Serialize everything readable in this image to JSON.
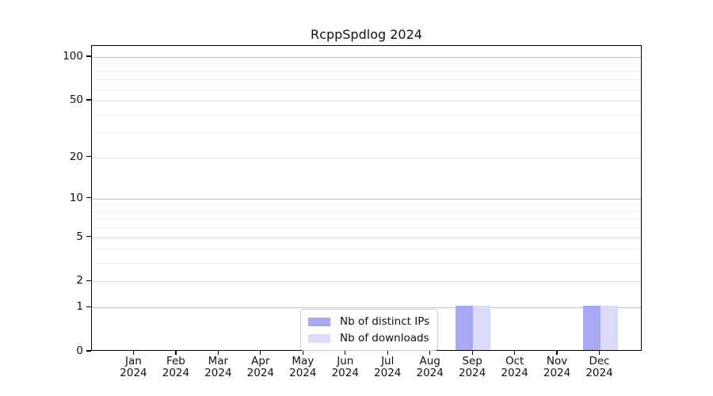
{
  "chart_data": {
    "type": "bar",
    "title": "RcppSpdlog 2024",
    "categories": [
      "Jan",
      "Feb",
      "Mar",
      "Apr",
      "May",
      "Jun",
      "Jul",
      "Aug",
      "Sep",
      "Oct",
      "Nov",
      "Dec"
    ],
    "category_year": "2024",
    "series": [
      {
        "name": "Nb of distinct IPs",
        "color": "#a8a8f5",
        "values": [
          0,
          0,
          0,
          0,
          0,
          0,
          0,
          0,
          1,
          0,
          0,
          1
        ]
      },
      {
        "name": "Nb of downloads",
        "color": "#dbdbf8",
        "values": [
          0,
          0,
          0,
          0,
          0,
          0,
          0,
          0,
          1,
          0,
          0,
          1
        ]
      }
    ],
    "yscale": "log1p",
    "ylim": [
      0,
      119
    ],
    "y_major_ticks": [
      0,
      1,
      2,
      5,
      10,
      20,
      50,
      100
    ],
    "y_decade_gridlines": [
      1,
      10,
      100
    ],
    "y_mid_gridlines": [
      2,
      5,
      20,
      50
    ],
    "y_minor_gridlines": [
      3,
      4,
      6,
      7,
      8,
      9,
      30,
      40,
      60,
      70,
      80,
      90
    ],
    "grid": "horizontal",
    "legend_position": "inside-bottom-center"
  },
  "colors": {
    "axis": "#000000",
    "grid_decade": "#c3c3c3",
    "grid_major": "#dddddd",
    "grid_minor": "#ededed",
    "legend_border": "#cccccc",
    "background": "#ffffff"
  }
}
